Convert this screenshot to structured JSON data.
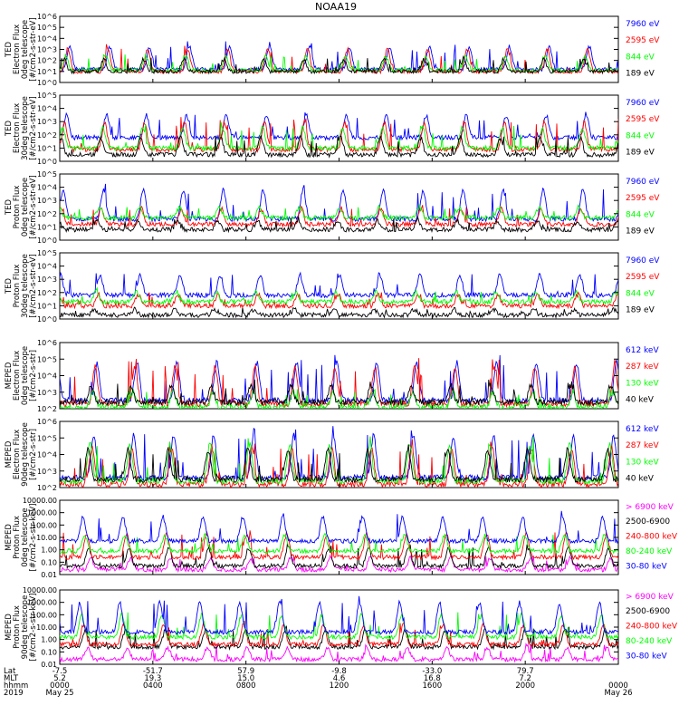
{
  "title": "NOAA19",
  "chart_data": [
    {
      "type": "line",
      "ylabel": [
        "TED",
        "Electron Flux",
        "0deg telescope",
        "[#/cm2-s-str-eV]"
      ],
      "yticks": [
        "10^0",
        "10^1",
        "10^2",
        "10^3",
        "10^4",
        "10^5",
        "10^6"
      ],
      "log_decades": [
        0,
        6
      ],
      "series": [
        {
          "name": "7960 eV",
          "color": "#0000ff",
          "base": 1.2,
          "peak": 3.6
        },
        {
          "name": "2595 eV",
          "color": "#ff0000",
          "base": 1.0,
          "peak": 3.4
        },
        {
          "name": "844 eV",
          "color": "#00ff00",
          "base": 1.1,
          "peak": 2.6
        },
        {
          "name": "189 eV",
          "color": "#000000",
          "base": 1.0,
          "peak": 2.3
        }
      ]
    },
    {
      "type": "line",
      "ylabel": [
        "TED",
        "Electron Flux",
        "30deg telescope",
        "[#/cm2-s-str-eV]"
      ],
      "yticks": [
        "10^0",
        "10^1",
        "10^2",
        "10^3",
        "10^4",
        "10^5"
      ],
      "log_decades": [
        0,
        5
      ],
      "series": [
        {
          "name": "7960 eV",
          "color": "#0000ff",
          "base": 1.8,
          "peak": 3.8
        },
        {
          "name": "2595 eV",
          "color": "#ff0000",
          "base": 0.9,
          "peak": 3.3
        },
        {
          "name": "844 eV",
          "color": "#00ff00",
          "base": 1.0,
          "peak": 2.8
        },
        {
          "name": "189 eV",
          "color": "#000000",
          "base": 0.5,
          "peak": 2.0
        }
      ]
    },
    {
      "type": "line",
      "ylabel": [
        "TED",
        "Proton Flux",
        "0deg telescope",
        "[#/cm2-s-str-eV]"
      ],
      "yticks": [
        "10^0",
        "10^1",
        "10^2",
        "10^3",
        "10^4",
        "10^5"
      ],
      "log_decades": [
        0,
        5
      ],
      "series": [
        {
          "name": "7960 eV",
          "color": "#0000ff",
          "base": 1.6,
          "peak": 4.2
        },
        {
          "name": "2595 eV",
          "color": "#ff0000",
          "base": 1.2,
          "peak": 2.6
        },
        {
          "name": "844 eV",
          "color": "#00ff00",
          "base": 1.7,
          "peak": 2.6
        },
        {
          "name": "189 eV",
          "color": "#000000",
          "base": 0.8,
          "peak": 1.6
        }
      ]
    },
    {
      "type": "line",
      "ylabel": [
        "TED",
        "Proton Flux",
        "30deg telescope",
        "[#/cm2-s-str-eV]"
      ],
      "yticks": [
        "10^0",
        "10^1",
        "10^2",
        "10^3",
        "10^4",
        "10^5"
      ],
      "log_decades": [
        0,
        5
      ],
      "series": [
        {
          "name": "7960 eV",
          "color": "#0000ff",
          "base": 1.8,
          "peak": 3.6
        },
        {
          "name": "2595 eV",
          "color": "#ff0000",
          "base": 1.0,
          "peak": 2.0
        },
        {
          "name": "844 eV",
          "color": "#00ff00",
          "base": 1.3,
          "peak": 2.2
        },
        {
          "name": "189 eV",
          "color": "#000000",
          "base": 0.3,
          "peak": 0.8
        }
      ]
    },
    {
      "type": "line",
      "ylabel": [
        "MEPED",
        "Electron Flux",
        "0deg telescope",
        "[#/cm2-s-str]"
      ],
      "yticks": [
        "10^2",
        "10^3",
        "10^4",
        "10^5",
        "10^6"
      ],
      "log_decades": [
        2,
        6
      ],
      "series": [
        {
          "name": "612 keV",
          "color": "#0000ff",
          "base": 2.5,
          "peak": 5.2
        },
        {
          "name": "287 keV",
          "color": "#ff0000",
          "base": 2.3,
          "peak": 4.9
        },
        {
          "name": "130 keV",
          "color": "#00ff00",
          "base": 2.1,
          "peak": 3.2
        },
        {
          "name": "40 keV",
          "color": "#000000",
          "base": 2.4,
          "peak": 3.6
        }
      ]
    },
    {
      "type": "line",
      "ylabel": [
        "MEPED",
        "Electron Flux",
        "90deg telescope",
        "[#/cm2-s-str]"
      ],
      "yticks": [
        "10^2",
        "10^3",
        "10^4",
        "10^5",
        "10^6"
      ],
      "log_decades": [
        2,
        6
      ],
      "series": [
        {
          "name": "612 keV",
          "color": "#0000ff",
          "base": 2.6,
          "peak": 5.6
        },
        {
          "name": "287 keV",
          "color": "#ff0000",
          "base": 2.2,
          "peak": 4.8
        },
        {
          "name": "130 keV",
          "color": "#00ff00",
          "base": 2.4,
          "peak": 5.0
        },
        {
          "name": "40 keV",
          "color": "#000000",
          "base": 2.5,
          "peak": 4.6
        }
      ]
    },
    {
      "type": "line",
      "ylabel": [
        "MEPED",
        "Proton Flux",
        "0deg telescope",
        "[#/cm2-s-str-keV]"
      ],
      "yticks": [
        "0.01",
        "0.10",
        "1.00",
        "10.00",
        "100.00",
        "1000.00",
        "10000.00"
      ],
      "log_decades": [
        -2,
        4
      ],
      "series": [
        {
          "name": "> 6900 keV",
          "color": "#ff00ff",
          "base": -1.6,
          "peak": -0.5
        },
        {
          "name": "2500-6900",
          "color": "#000000",
          "base": -1.3,
          "peak": 0.4
        },
        {
          "name": "240-800 keV",
          "color": "#ff0000",
          "base": -0.6,
          "peak": 1.6
        },
        {
          "name": "80-240 keV",
          "color": "#00ff00",
          "base": -0.1,
          "peak": 1.4
        },
        {
          "name": "30-80 keV",
          "color": "#0000ff",
          "base": 0.7,
          "peak": 3.0
        }
      ]
    },
    {
      "type": "line",
      "ylabel": [
        "MEPED",
        "Proton Flux",
        "90deg telescope",
        "[#/cm2-s-str-keV]"
      ],
      "yticks": [
        "0.01",
        "0.10",
        "1.00",
        "10.00",
        "100.00",
        "1000.00",
        "10000.00"
      ],
      "log_decades": [
        -2,
        4
      ],
      "series": [
        {
          "name": "> 6900 keV",
          "color": "#ff00ff",
          "base": -1.6,
          "peak": -0.5
        },
        {
          "name": "2500-6900",
          "color": "#000000",
          "base": -0.6,
          "peak": 1.0
        },
        {
          "name": "240-800 keV",
          "color": "#ff0000",
          "base": -0.4,
          "peak": 1.5
        },
        {
          "name": "80-240 keV",
          "color": "#00ff00",
          "base": 0.2,
          "peak": 2.3
        },
        {
          "name": "30-80 keV",
          "color": "#0000ff",
          "base": 0.6,
          "peak": 3.4
        }
      ]
    }
  ],
  "x_axis": {
    "row_labels": [
      "Lat",
      "MLT",
      "hhmm",
      "2019"
    ],
    "ticks": [
      {
        "hour": 0,
        "lat": "-7.5",
        "mlt": "5.2",
        "hhmm": "0000",
        "date": "May 25"
      },
      {
        "hour": 4,
        "lat": "-51.7",
        "mlt": "19.3",
        "hhmm": "0400",
        "date": ""
      },
      {
        "hour": 8,
        "lat": "57.9",
        "mlt": "15.0",
        "hhmm": "0800",
        "date": ""
      },
      {
        "hour": 12,
        "lat": "-9.8",
        "mlt": "4.6",
        "hhmm": "1200",
        "date": ""
      },
      {
        "hour": 16,
        "lat": "-33.0",
        "mlt": "16.8",
        "hhmm": "1600",
        "date": ""
      },
      {
        "hour": 20,
        "lat": "79.7",
        "mlt": "7.2",
        "hhmm": "2000",
        "date": ""
      },
      {
        "hour": 24,
        "lat": "",
        "mlt": "",
        "hhmm": "0000",
        "date": "May 26"
      }
    ],
    "range_hours": [
      0,
      24
    ]
  }
}
